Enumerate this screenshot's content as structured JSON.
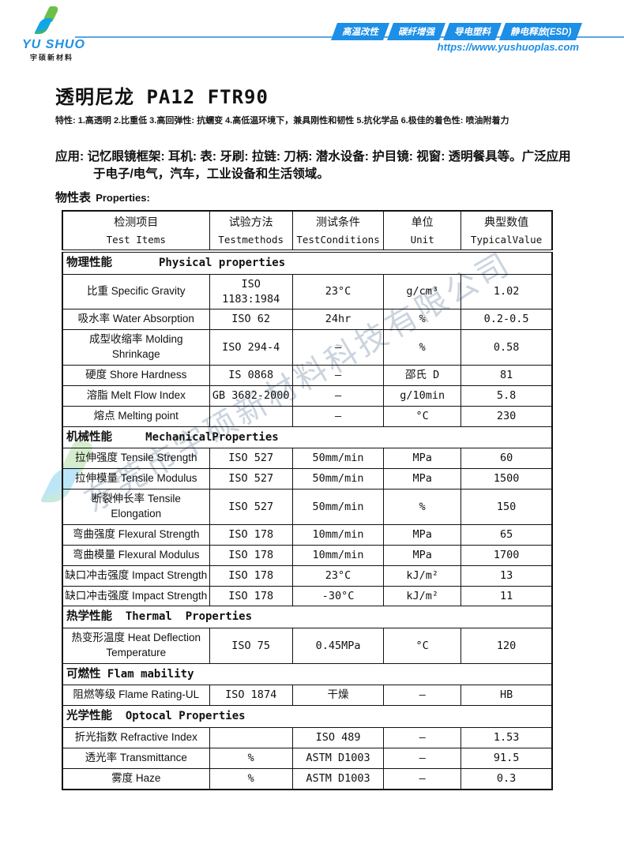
{
  "header": {
    "logo": {
      "brand": "YU SHUO",
      "subtitle": "宇硕新材料",
      "icon": "leaf-icon"
    },
    "tabs": [
      {
        "label": "高温改性"
      },
      {
        "label": "碳纤增强"
      },
      {
        "label": "导电塑料"
      },
      {
        "label": "静电释放(ESD)"
      }
    ],
    "url": "https://www.yushuoplas.com",
    "accent_color": "#1d8fe6",
    "line_color": "#5aa6e0"
  },
  "document": {
    "title": "透明尼龙 PA12 FTR90",
    "features": "特性: 1.高透明 2.比重低 3.高回弹性: 抗蠕变 4.高低温环境下，兼具刚性和韧性 5.抗化学品 6.极佳的着色性: 喷油附着力",
    "application": "应用: 记忆眼镜框架: 耳机: 表: 牙刷: 拉链: 刀柄: 潜水设备: 护目镜: 视窗: 透明餐具等。广泛应用于电子/电气，汽车，工业设备和生活领域。",
    "properties_heading_zh": "物性表",
    "properties_heading_en": "Properties:",
    "watermark": "东莞市宇硕新材料科技有限公司",
    "watermark_color": "#c2cdd9"
  },
  "table": {
    "columns": [
      {
        "zh": "检测项目",
        "en": "Test Items"
      },
      {
        "zh": "试验方法",
        "en": "Testmethods"
      },
      {
        "zh": "测试条件",
        "en": "TestConditions"
      },
      {
        "zh": "单位",
        "en": "Unit"
      },
      {
        "zh": "典型数值",
        "en": "TypicalValue"
      }
    ],
    "rows": [
      {
        "type": "section",
        "zh": "物理性能",
        "en": "       Physical properties"
      },
      {
        "type": "data",
        "cells": [
          "比重 Specific Gravity",
          "ISO 1183:1984",
          "23°C",
          "g/cm³",
          "1.02"
        ]
      },
      {
        "type": "data",
        "cells": [
          "吸水率 Water Absorption",
          "ISO 62",
          "24hr",
          "%",
          "0.2-0.5"
        ]
      },
      {
        "type": "data",
        "cells": [
          "成型收缩率 Molding Shrinkage",
          "ISO 294-4",
          "–",
          "%",
          "0.58"
        ]
      },
      {
        "type": "data",
        "cells": [
          "硬度 Shore Hardness",
          "IS 0868",
          "–",
          "邵氏 D",
          "81"
        ]
      },
      {
        "type": "data",
        "cells": [
          "溶脂 Melt Flow Index",
          "GB 3682-2000",
          "–",
          "g/10min",
          "5.8"
        ]
      },
      {
        "type": "data",
        "cells": [
          "熔点 Melting point",
          "",
          "–",
          "°C",
          "230"
        ]
      },
      {
        "type": "section",
        "zh": "机械性能",
        "en": "     MechanicalProperties"
      },
      {
        "type": "data",
        "cells": [
          "拉伸强度 Tensile Strength",
          "ISO 527",
          "50mm/min",
          "MPa",
          "60"
        ]
      },
      {
        "type": "data",
        "cells": [
          "拉伸模量 Tensile Modulus",
          "ISO 527",
          "50mm/min",
          "MPa",
          "1500"
        ]
      },
      {
        "type": "data",
        "cells": [
          "断裂伸长率 Tensile Elongation",
          "ISO 527",
          "50mm/min",
          "%",
          "150"
        ]
      },
      {
        "type": "data",
        "cells": [
          "弯曲强度 Flexural Strength",
          "ISO 178",
          "10mm/min",
          "MPa",
          "65"
        ]
      },
      {
        "type": "data",
        "cells": [
          "弯曲模量 Flexural Modulus",
          "ISO 178",
          "10mm/min",
          "MPa",
          "1700"
        ]
      },
      {
        "type": "data",
        "cells": [
          "缺口冲击强度 Impact Strength",
          "ISO 178",
          "23°C",
          "kJ/m²",
          "13"
        ]
      },
      {
        "type": "data",
        "cells": [
          "缺口冲击强度 Impact Strength",
          "ISO 178",
          "-30°C",
          "kJ/m²",
          "11"
        ]
      },
      {
        "type": "section",
        "zh": "热学性能",
        "en": "  Thermal  Properties"
      },
      {
        "type": "data",
        "cells": [
          "热变形温度 Heat Deflection Temperature",
          "ISO 75",
          "0.45MPa",
          "°C",
          "120"
        ]
      },
      {
        "type": "section",
        "zh": "可燃性",
        "en": " Flam mability"
      },
      {
        "type": "data",
        "cells": [
          "阻燃等级 Flame Rating-UL",
          "ISO 1874",
          "干燥",
          "–",
          "HB"
        ]
      },
      {
        "type": "section",
        "zh": "光学性能",
        "en": "  Optocal Properties"
      },
      {
        "type": "data",
        "cells": [
          "折光指数 Refractive Index",
          "",
          "ISO 489",
          "–",
          "1.53"
        ]
      },
      {
        "type": "data",
        "cells": [
          "透光率 Transmittance",
          "%",
          "ASTM D1003",
          "–",
          "91.5"
        ]
      },
      {
        "type": "data",
        "cells": [
          "雾度 Haze",
          "%",
          "ASTM D1003",
          "–",
          "0.3"
        ]
      }
    ]
  }
}
